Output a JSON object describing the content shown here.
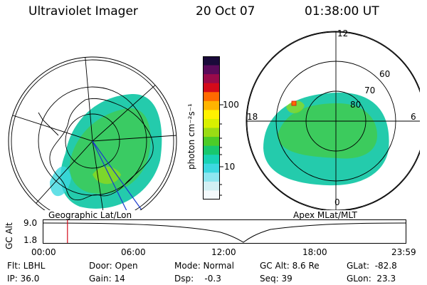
{
  "header": {
    "instrument": "Ultraviolet Imager",
    "date": "20 Oct 07",
    "time": "01:38:00 UT"
  },
  "colorbar": {
    "unit_label": "photon cm⁻²s⁻¹",
    "tick_labels": [
      "100",
      "10"
    ],
    "colors": [
      "#1a0a3a",
      "#5a0a5a",
      "#9a0a4a",
      "#d40a1a",
      "#ff6a00",
      "#ffb400",
      "#fff200",
      "#d8f000",
      "#9adc14",
      "#4ccc28",
      "#18c86e",
      "#18d2b4",
      "#3cd8e0",
      "#8ee6f0",
      "#d2f0f4",
      "#f4fafc"
    ]
  },
  "left_map": {
    "caption": "Geographic Lat/Lon"
  },
  "right_map": {
    "caption": "Apex MLat/MLT",
    "mlt_labels": [
      "12",
      "18",
      "6",
      "0"
    ],
    "lat_labels": [
      "60",
      "70",
      "80"
    ]
  },
  "altitude_plot": {
    "ylabel": "GC Alt",
    "y_ticks": [
      "9.0",
      "1.8"
    ],
    "x_ticks": [
      "00:00",
      "06:00",
      "12:00",
      "18:00",
      "23:59"
    ],
    "current_time_hours": 1.633
  },
  "footer": {
    "filter": "Flt: LBHL",
    "ip": "IP: 36.0",
    "door": "Door: Open",
    "gain": "Gain: 14",
    "mode": "Mode: Normal",
    "dsp": "Dsp:    -0.3",
    "gc_alt": "GC Alt: 8.6 Re",
    "seq": "Seq: 39",
    "glat": "GLat:  -82.8",
    "glon": "GLon:  23.3"
  }
}
